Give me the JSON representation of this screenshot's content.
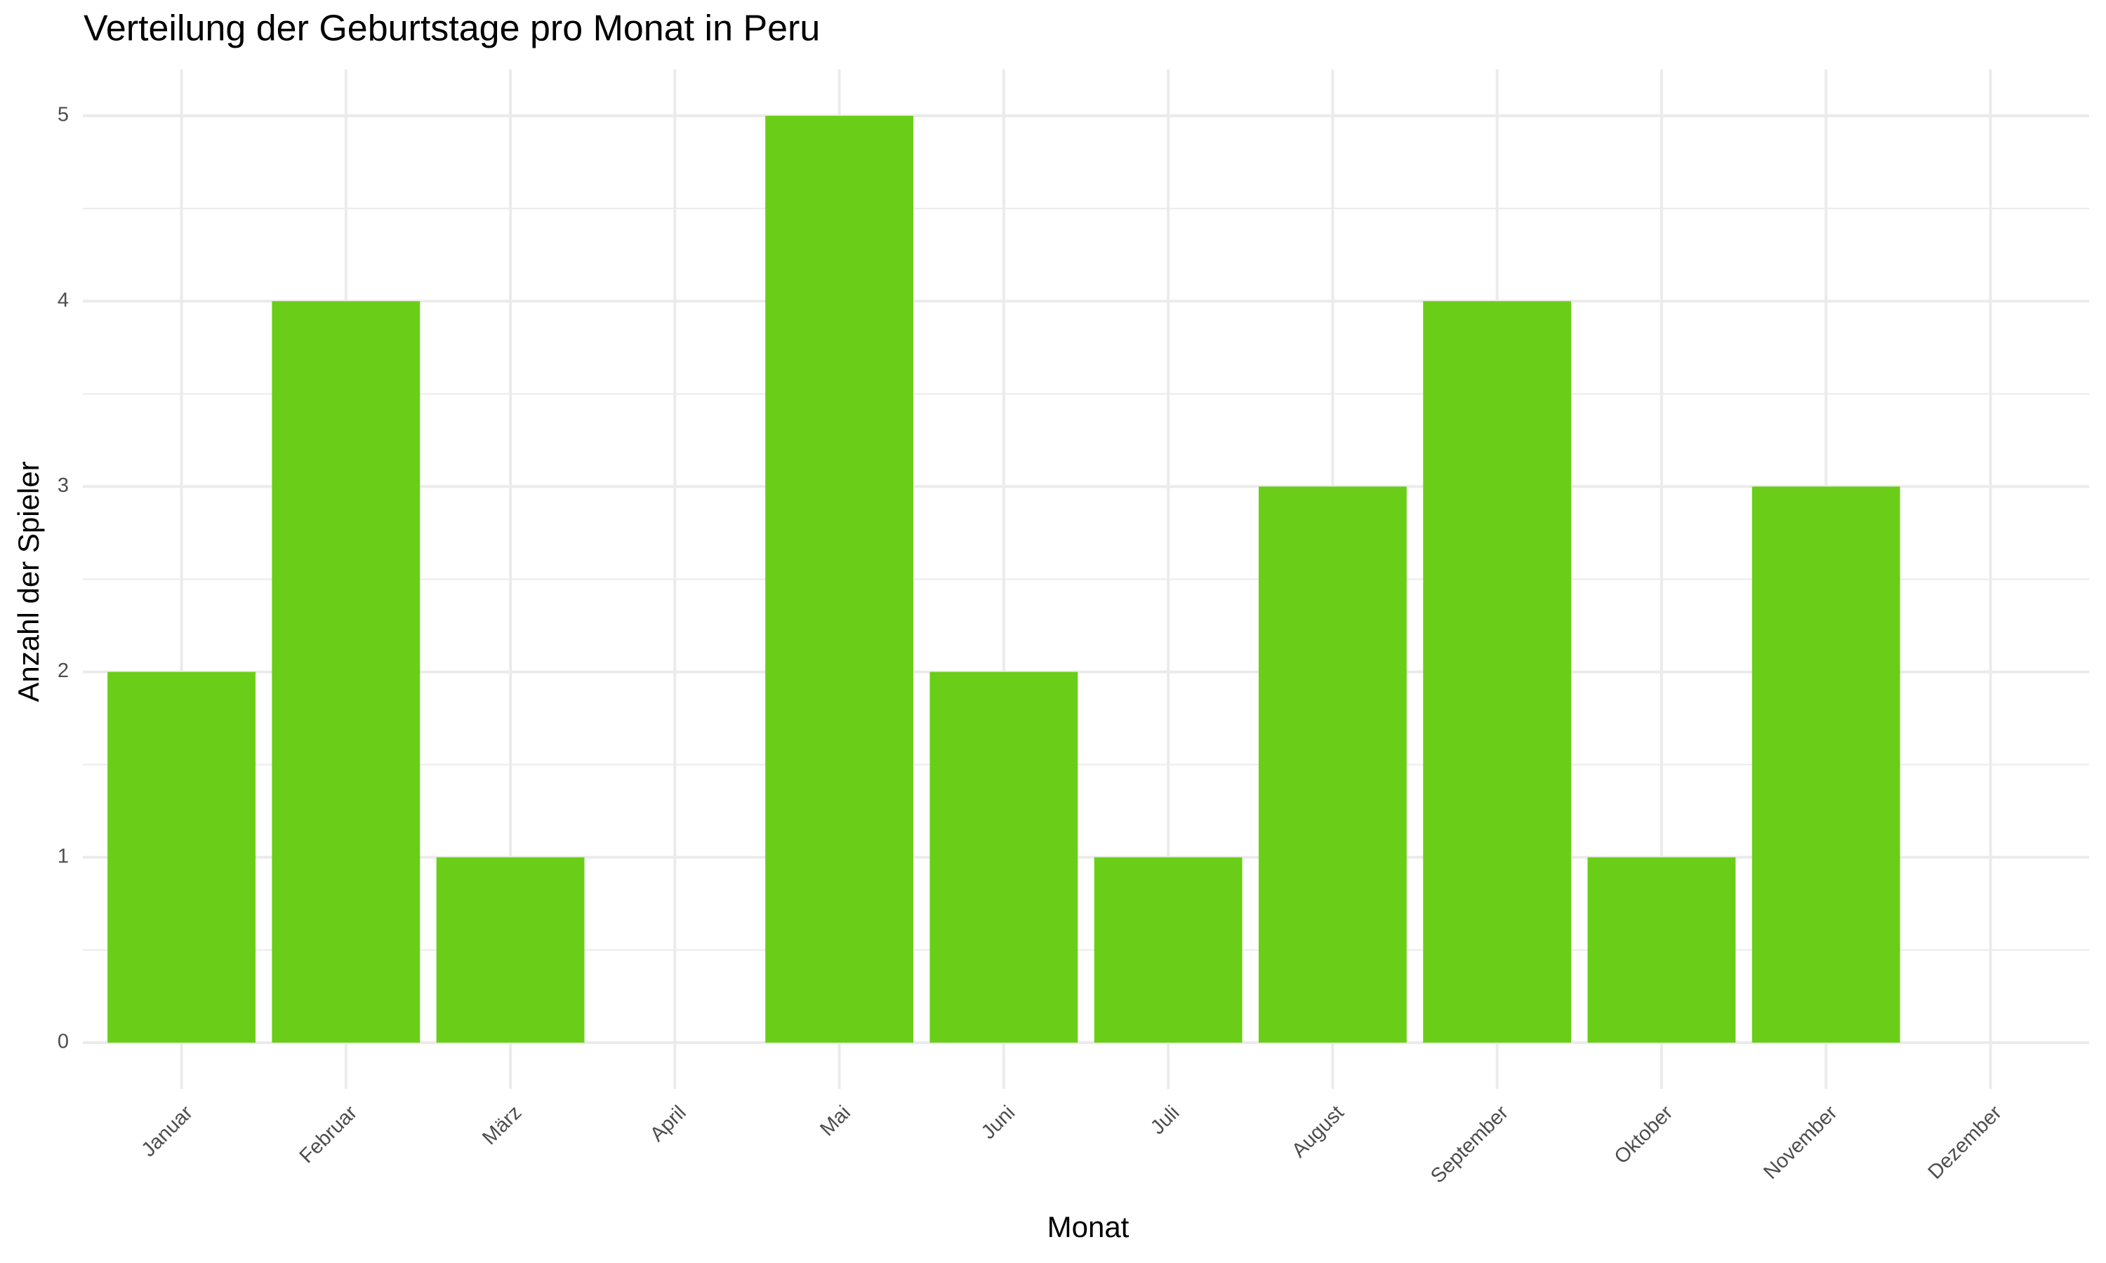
{
  "chart_data": {
    "type": "bar",
    "title": "Verteilung der Geburtstage pro Monat in Peru",
    "x_label": "Monat",
    "y_label": "Anzahl der Spieler",
    "categories": [
      "Januar",
      "Februar",
      "März",
      "April",
      "Mai",
      "Juni",
      "Juli",
      "August",
      "September",
      "Oktober",
      "November",
      "Dezember"
    ],
    "values": [
      2,
      4,
      1,
      0,
      5,
      2,
      1,
      3,
      4,
      1,
      3,
      0
    ],
    "color": "#6ace18",
    "ylim": [
      -0.25,
      5.25
    ],
    "yticks": [
      0,
      1,
      2,
      3,
      4,
      5
    ],
    "grid": true,
    "minor_grid": true
  }
}
